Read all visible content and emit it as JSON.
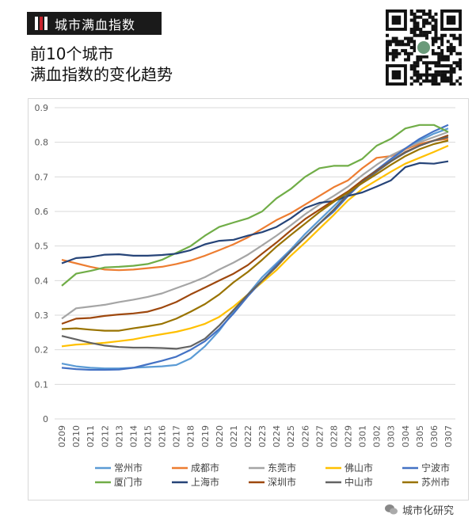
{
  "header": {
    "tag_label": "城市满血指数",
    "headline_line1": "前10个城市",
    "headline_line2": "满血指数的变化趋势"
  },
  "watermark": {
    "label": "城市化研究"
  },
  "chart_data": {
    "type": "line",
    "x": [
      "0209",
      "0210",
      "0211",
      "0212",
      "0213",
      "0214",
      "0215",
      "0216",
      "0217",
      "0218",
      "0219",
      "0220",
      "0221",
      "0222",
      "0223",
      "0224",
      "0225",
      "0226",
      "0227",
      "0228",
      "0229",
      "0301",
      "0302",
      "0303",
      "0304",
      "0305",
      "0306",
      "0307"
    ],
    "ylim": [
      0,
      0.9
    ],
    "yticks": [
      "0",
      "0.1",
      "0.2",
      "0.3",
      "0.4",
      "0.5",
      "0.6",
      "0.7",
      "0.8",
      "0.9"
    ],
    "grid": true,
    "legend_position": "bottom",
    "series": [
      {
        "name": "常州市",
        "color": "#5b9bd5",
        "values": [
          0.16,
          0.152,
          0.148,
          0.146,
          0.146,
          0.148,
          0.15,
          0.152,
          0.156,
          0.175,
          0.21,
          0.255,
          0.31,
          0.36,
          0.41,
          0.45,
          0.49,
          0.535,
          0.575,
          0.615,
          0.655,
          0.69,
          0.72,
          0.75,
          0.78,
          0.805,
          0.825,
          0.84
        ]
      },
      {
        "name": "成都市",
        "color": "#ed7d31",
        "values": [
          0.46,
          0.45,
          0.44,
          0.432,
          0.43,
          0.432,
          0.436,
          0.44,
          0.448,
          0.458,
          0.472,
          0.488,
          0.505,
          0.525,
          0.55,
          0.575,
          0.595,
          0.62,
          0.645,
          0.67,
          0.69,
          0.725,
          0.755,
          0.76,
          0.78,
          0.795,
          0.805,
          0.81
        ]
      },
      {
        "name": "东莞市",
        "color": "#a5a5a5",
        "values": [
          0.29,
          0.32,
          0.325,
          0.33,
          0.338,
          0.345,
          0.353,
          0.363,
          0.378,
          0.393,
          0.41,
          0.432,
          0.452,
          0.475,
          0.502,
          0.53,
          0.56,
          0.592,
          0.62,
          0.645,
          0.672,
          0.705,
          0.735,
          0.762,
          0.782,
          0.8,
          0.815,
          0.83
        ]
      },
      {
        "name": "佛山市",
        "color": "#ffc000",
        "values": [
          0.21,
          0.215,
          0.217,
          0.22,
          0.225,
          0.23,
          0.238,
          0.245,
          0.252,
          0.262,
          0.275,
          0.295,
          0.325,
          0.36,
          0.395,
          0.43,
          0.472,
          0.51,
          0.55,
          0.59,
          0.632,
          0.665,
          0.69,
          0.715,
          0.738,
          0.755,
          0.772,
          0.79
        ]
      },
      {
        "name": "宁波市",
        "color": "#4472c4",
        "values": [
          0.148,
          0.144,
          0.142,
          0.142,
          0.143,
          0.148,
          0.158,
          0.168,
          0.18,
          0.2,
          0.225,
          0.26,
          0.305,
          0.355,
          0.4,
          0.445,
          0.485,
          0.525,
          0.565,
          0.6,
          0.645,
          0.685,
          0.72,
          0.752,
          0.782,
          0.81,
          0.832,
          0.85
        ]
      },
      {
        "name": "厦门市",
        "color": "#70ad47",
        "values": [
          0.385,
          0.42,
          0.428,
          0.438,
          0.44,
          0.443,
          0.448,
          0.46,
          0.48,
          0.5,
          0.53,
          0.555,
          0.568,
          0.58,
          0.6,
          0.638,
          0.665,
          0.7,
          0.725,
          0.732,
          0.732,
          0.752,
          0.79,
          0.81,
          0.84,
          0.85,
          0.85,
          0.83
        ]
      },
      {
        "name": "上海市",
        "color": "#264478",
        "values": [
          0.45,
          0.465,
          0.468,
          0.475,
          0.476,
          0.472,
          0.472,
          0.474,
          0.478,
          0.488,
          0.505,
          0.515,
          0.518,
          0.53,
          0.54,
          0.555,
          0.58,
          0.61,
          0.625,
          0.63,
          0.645,
          0.655,
          0.672,
          0.69,
          0.728,
          0.74,
          0.738,
          0.745
        ]
      },
      {
        "name": "深圳市",
        "color": "#9e480e",
        "values": [
          0.275,
          0.29,
          0.292,
          0.298,
          0.302,
          0.305,
          0.31,
          0.322,
          0.338,
          0.36,
          0.38,
          0.4,
          0.42,
          0.445,
          0.478,
          0.51,
          0.545,
          0.578,
          0.605,
          0.632,
          0.658,
          0.69,
          0.718,
          0.745,
          0.772,
          0.79,
          0.805,
          0.82
        ]
      },
      {
        "name": "中山市",
        "color": "#636363",
        "values": [
          0.24,
          0.23,
          0.22,
          0.212,
          0.208,
          0.206,
          0.206,
          0.205,
          0.203,
          0.21,
          0.232,
          0.27,
          0.315,
          0.36,
          0.4,
          0.44,
          0.485,
          0.525,
          0.565,
          0.605,
          0.65,
          0.685,
          0.715,
          0.745,
          0.77,
          0.79,
          0.805,
          0.815
        ]
      },
      {
        "name": "苏州市",
        "color": "#997300",
        "values": [
          0.26,
          0.262,
          0.258,
          0.255,
          0.255,
          0.262,
          0.268,
          0.275,
          0.29,
          0.31,
          0.332,
          0.36,
          0.395,
          0.425,
          0.46,
          0.498,
          0.532,
          0.565,
          0.598,
          0.628,
          0.655,
          0.682,
          0.708,
          0.735,
          0.76,
          0.78,
          0.795,
          0.805
        ]
      }
    ]
  }
}
